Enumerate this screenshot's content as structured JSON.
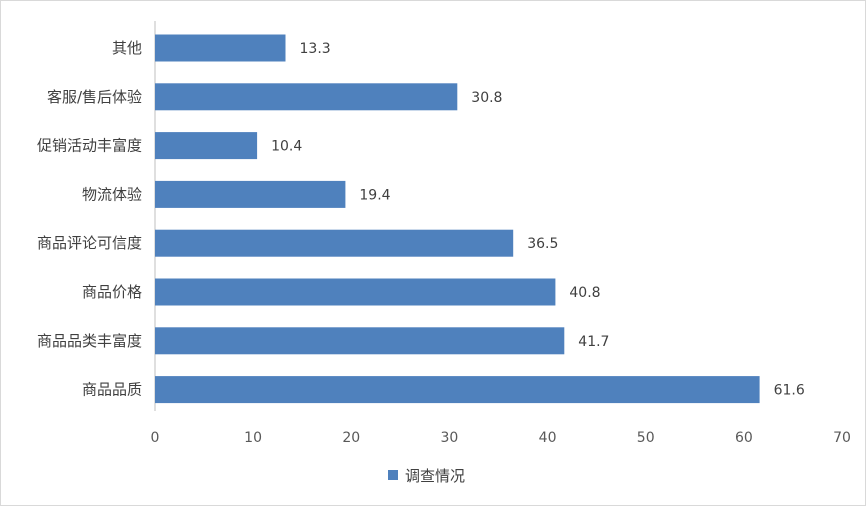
{
  "chart_data": {
    "type": "bar",
    "orientation": "horizontal",
    "categories": [
      "其他",
      "客服/售后体验",
      "促销活动丰富度",
      "物流体验",
      "商品评论可信度",
      "商品价格",
      "商品品类丰富度",
      "商品品质"
    ],
    "series": [
      {
        "name": "调查情况",
        "values": [
          13.3,
          30.8,
          10.4,
          19.4,
          36.5,
          40.8,
          41.7,
          61.6
        ],
        "value_labels": [
          "13.3",
          "30.8",
          "10.4",
          "19.4",
          "36.5",
          "40.8",
          "41.7",
          "61.6"
        ]
      }
    ],
    "xlim": [
      0,
      70
    ],
    "xticks": [
      "0",
      "10",
      "20",
      "30",
      "40",
      "50",
      "60",
      "70"
    ],
    "grid": false,
    "legend": "bottom",
    "bar_color": "#4f81bd"
  }
}
